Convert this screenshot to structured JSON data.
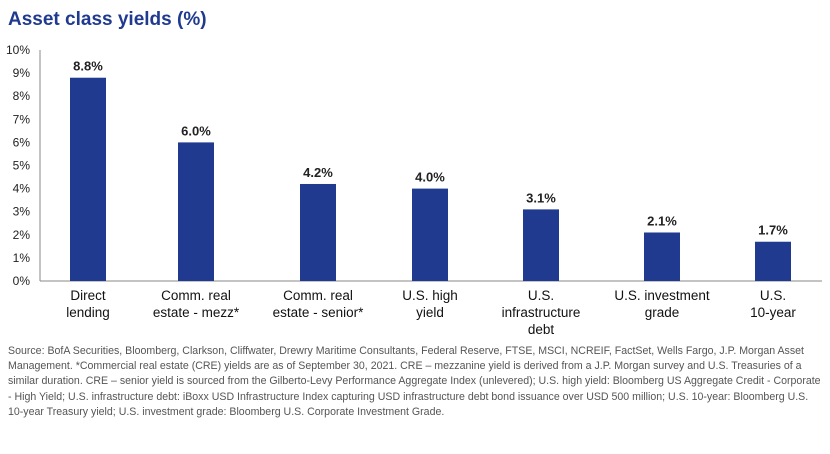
{
  "chart_data": {
    "type": "bar",
    "title": "Asset class yields (%)",
    "categories": [
      [
        "Direct",
        "lending"
      ],
      [
        "Comm. real",
        "estate - mezz*"
      ],
      [
        "Comm. real",
        "estate - senior*"
      ],
      [
        "U.S. high",
        "yield"
      ],
      [
        "U.S.",
        "infrastructure",
        "debt"
      ],
      [
        "U.S. investment",
        "grade"
      ],
      [
        "U.S.",
        "10-year"
      ]
    ],
    "values": [
      8.8,
      6.0,
      4.2,
      4.0,
      3.1,
      2.1,
      1.7
    ],
    "value_labels": [
      "8.8%",
      "6.0%",
      "4.2%",
      "4.0%",
      "3.1%",
      "2.1%",
      "1.7%"
    ],
    "y_ticks": [
      "0%",
      "1%",
      "2%",
      "3%",
      "4%",
      "5%",
      "6%",
      "7%",
      "8%",
      "9%",
      "10%"
    ],
    "ylim": [
      0,
      10
    ],
    "grid": false,
    "bar_color": "#1f3a8f"
  },
  "source_text": "Source: BofA Securities, Bloomberg, Clarkson, Cliffwater, Drewry Maritime Consultants, Federal Reserve, FTSE, MSCI, NCREIF, FactSet, Wells Fargo, J.P. Morgan Asset Management. *Commercial real estate (CRE) yields are as of September 30, 2021. CRE – mezzanine yield is derived from a J.P. Morgan survey and U.S. Treasuries of a similar duration. CRE – senior yield is sourced from the Gilberto-Levy Performance Aggregate Index (unlevered); U.S. high yield: Bloomberg US Aggregate Credit - Corporate - High Yield; U.S. infrastructure debt: iBoxx USD Infrastructure Index capturing USD infrastructure debt bond issuance over USD 500 million; U.S. 10-year: Bloomberg U.S. 10-year Treasury yield; U.S. investment grade: Bloomberg U.S. Corporate Investment Grade."
}
